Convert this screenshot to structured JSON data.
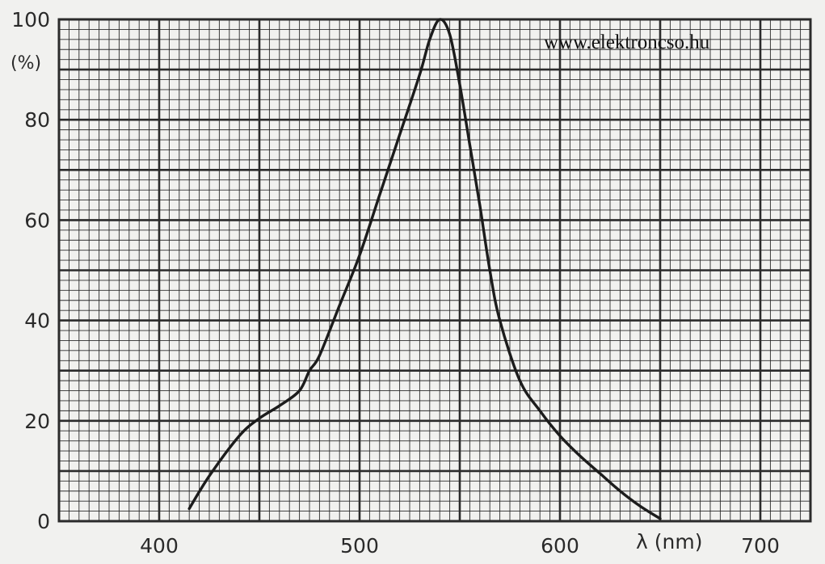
{
  "chart_data": {
    "type": "line",
    "title": "",
    "xlabel": "λ (nm)",
    "ylabel": "(%)",
    "xlim": [
      350,
      725
    ],
    "ylim": [
      0,
      100
    ],
    "x_ticks": [
      400,
      500,
      600,
      700
    ],
    "x_tick_labels": [
      "400",
      "500",
      "600",
      "700"
    ],
    "y_ticks": [
      0,
      20,
      40,
      60,
      80,
      100
    ],
    "y_tick_labels": [
      "0",
      "20",
      "40",
      "60",
      "80",
      "100"
    ],
    "grid": true,
    "series": [
      {
        "x": [
          415,
          425,
          440,
          450,
          460,
          470,
          475,
          480,
          490,
          500,
          510,
          520,
          530,
          535,
          540,
          545,
          550,
          555,
          560,
          565,
          570,
          580,
          590,
          600,
          610,
          620,
          630,
          640,
          650
        ],
        "y": [
          2.5,
          9,
          17,
          20.5,
          23,
          26,
          30,
          33,
          43,
          53,
          65,
          77,
          89,
          96,
          100,
          97,
          87,
          75,
          63,
          50,
          40,
          28,
          22,
          17,
          13,
          9.5,
          6,
          3,
          0.5
        ]
      }
    ]
  },
  "watermark": {
    "text": "www.elektroncso.hu"
  },
  "colors": {
    "paper": "#f1f1ef",
    "grid": "#2b2b2b",
    "curve": "#1c1c1c",
    "text": "#2a2a2a"
  }
}
